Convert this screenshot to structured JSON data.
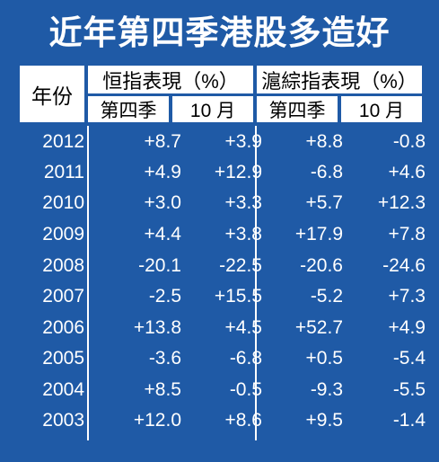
{
  "title": "近年第四季港股多造好",
  "header": {
    "year_label": "年份",
    "hsi_label": "恒指表現（%）",
    "sci_label": "滬綜指表現（%）",
    "q4_label": "第四季",
    "oct_label": "10 月"
  },
  "rows": [
    {
      "year": "2012",
      "hsi_q4": "+8.7",
      "hsi_oct": "+3.9",
      "sci_q4": "+8.8",
      "sci_oct": "-0.8"
    },
    {
      "year": "2011",
      "hsi_q4": "+4.9",
      "hsi_oct": "+12.9",
      "sci_q4": "-6.8",
      "sci_oct": "+4.6"
    },
    {
      "year": "2010",
      "hsi_q4": "+3.0",
      "hsi_oct": "+3.3",
      "sci_q4": "+5.7",
      "sci_oct": "+12.3"
    },
    {
      "year": "2009",
      "hsi_q4": "+4.4",
      "hsi_oct": "+3.8",
      "sci_q4": "+17.9",
      "sci_oct": "+7.8"
    },
    {
      "year": "2008",
      "hsi_q4": "-20.1",
      "hsi_oct": "-22.5",
      "sci_q4": "-20.6",
      "sci_oct": "-24.6"
    },
    {
      "year": "2007",
      "hsi_q4": "-2.5",
      "hsi_oct": "+15.5",
      "sci_q4": "-5.2",
      "sci_oct": "+7.3"
    },
    {
      "year": "2006",
      "hsi_q4": "+13.8",
      "hsi_oct": "+4.5",
      "sci_q4": "+52.7",
      "sci_oct": "+4.9"
    },
    {
      "year": "2005",
      "hsi_q4": "-3.6",
      "hsi_oct": "-6.8",
      "sci_q4": "+0.5",
      "sci_oct": "-5.4"
    },
    {
      "year": "2004",
      "hsi_q4": "+8.5",
      "hsi_oct": "-0.5",
      "sci_q4": "-9.3",
      "sci_oct": "-5.5"
    },
    {
      "year": "2003",
      "hsi_q4": "+12.0",
      "hsi_oct": "+8.6",
      "sci_q4": "+9.5",
      "sci_oct": "-1.4"
    }
  ],
  "colors": {
    "background": "#1f5aa6",
    "header_bg": "#ffffff",
    "text": "#ffffff",
    "header_text": "#000000"
  }
}
